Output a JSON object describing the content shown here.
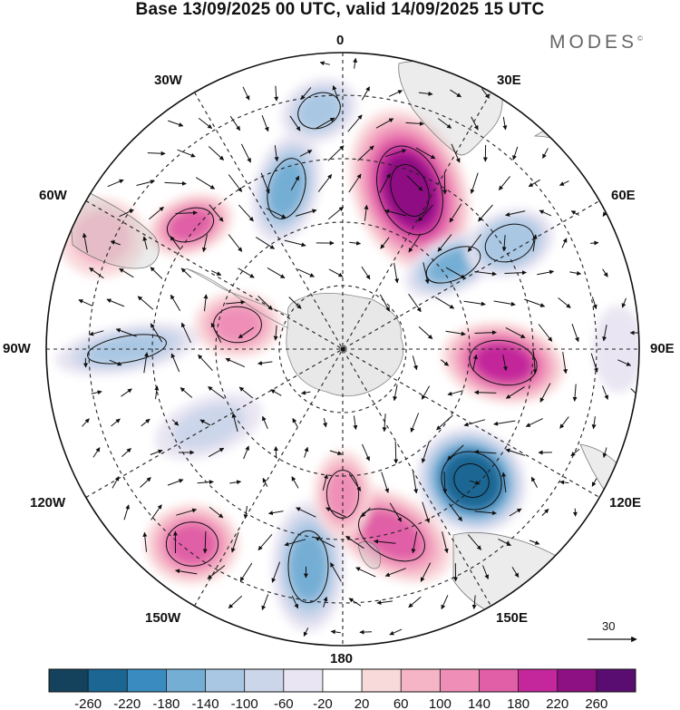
{
  "title": "Base 13/09/2025 00 UTC, valid 14/09/2025 15 UTC",
  "brand": "MODES",
  "brand_mark": "©",
  "longitude_labels": {
    "lon_0": "0",
    "lon_30e": "30E",
    "lon_60e": "60E",
    "lon_90e": "90E",
    "lon_120e": "120E",
    "lon_150e": "150E",
    "lon_180": "180",
    "lon_150w": "150W",
    "lon_120w": "120W",
    "lon_90w": "90W",
    "lon_60w": "60W",
    "lon_30w": "30W"
  },
  "reference_vector": {
    "value": "30"
  },
  "colorbar": {
    "colors": [
      "#14425c",
      "#1b6693",
      "#3a8cc0",
      "#74aed4",
      "#a9c7e3",
      "#ccd6ea",
      "#e9e5f2",
      "#ffffff",
      "#f9dadb",
      "#f5b5c7",
      "#ef8fb7",
      "#e05fa6",
      "#c3279b",
      "#8e1183",
      "#5a0d71"
    ],
    "labels": [
      "-260",
      "-220",
      "-180",
      "-140",
      "-100",
      "-60",
      "-20",
      "20",
      "60",
      "100",
      "140",
      "180",
      "220",
      "260"
    ]
  },
  "anomaly_centers": [
    {
      "name": "blue-center-near-0",
      "value": -110
    },
    {
      "name": "blue-center-15w",
      "value": -150
    },
    {
      "name": "magenta-center-25e",
      "value": 230
    },
    {
      "name": "pink-center-50w",
      "value": 140
    },
    {
      "name": "blue-center-60e",
      "value": -160
    },
    {
      "name": "blue-center-50e",
      "value": -140
    },
    {
      "name": "magenta-center-85e",
      "value": 190
    },
    {
      "name": "pink-center-75w",
      "value": 130
    },
    {
      "name": "blue-center-95w",
      "value": -110
    },
    {
      "name": "blue-center-130e",
      "value": -260
    },
    {
      "name": "pink-center-150e",
      "value": 160
    },
    {
      "name": "blue-center-170w",
      "value": -160
    },
    {
      "name": "pink-center-140w",
      "value": 170
    },
    {
      "name": "pink-center-165e",
      "value": 120
    },
    {
      "name": "blue-center-120w",
      "value": -90
    },
    {
      "name": "blue-center-90e",
      "value": -60
    },
    {
      "name": "pink-center-70w",
      "value": 70
    }
  ]
}
